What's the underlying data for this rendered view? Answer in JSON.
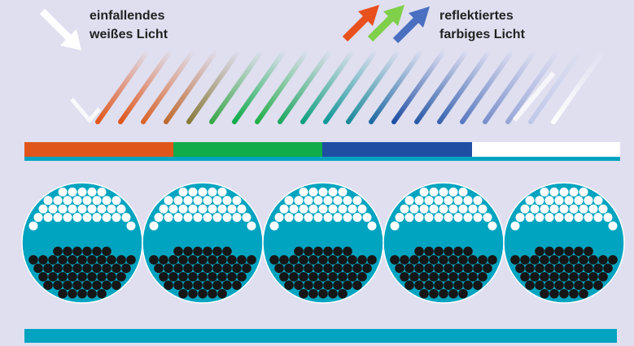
{
  "labels": {
    "incident": [
      "einfallendes",
      "weißes Licht"
    ],
    "reflected": [
      "reflektiertes",
      "farbiges Licht"
    ]
  }
}
